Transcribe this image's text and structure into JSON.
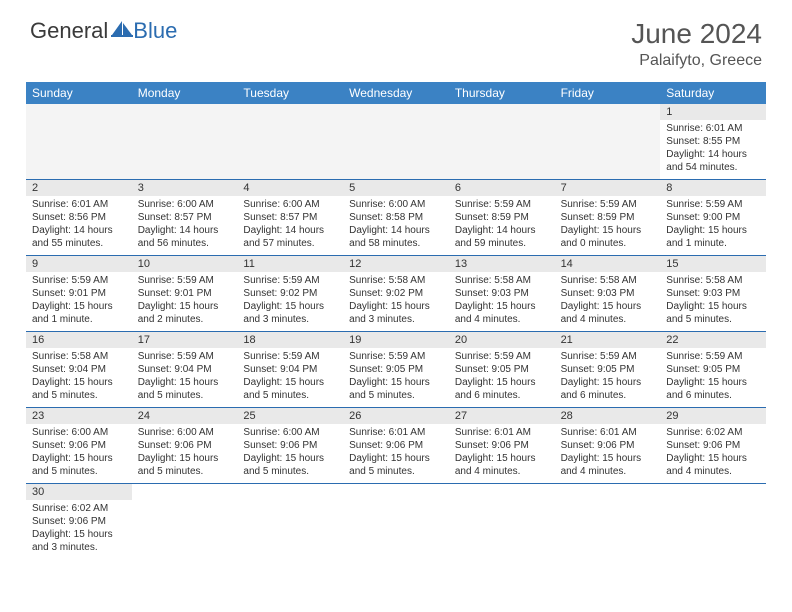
{
  "brand": {
    "part1": "General",
    "part2": "Blue"
  },
  "title": "June 2024",
  "location": "Palaifyto, Greece",
  "colors": {
    "header_bg": "#3b82c4",
    "header_fg": "#ffffff",
    "row_border": "#2b6cb0",
    "num_bg": "#e9e9e9",
    "empty_bg": "#f4f4f4",
    "text": "#333333",
    "title_color": "#555555"
  },
  "day_labels": [
    "Sunday",
    "Monday",
    "Tuesday",
    "Wednesday",
    "Thursday",
    "Friday",
    "Saturday"
  ],
  "weeks": [
    [
      null,
      null,
      null,
      null,
      null,
      null,
      {
        "n": "1",
        "sr": "6:01 AM",
        "ss": "8:55 PM",
        "dl": "14 hours and 54 minutes."
      }
    ],
    [
      {
        "n": "2",
        "sr": "6:01 AM",
        "ss": "8:56 PM",
        "dl": "14 hours and 55 minutes."
      },
      {
        "n": "3",
        "sr": "6:00 AM",
        "ss": "8:57 PM",
        "dl": "14 hours and 56 minutes."
      },
      {
        "n": "4",
        "sr": "6:00 AM",
        "ss": "8:57 PM",
        "dl": "14 hours and 57 minutes."
      },
      {
        "n": "5",
        "sr": "6:00 AM",
        "ss": "8:58 PM",
        "dl": "14 hours and 58 minutes."
      },
      {
        "n": "6",
        "sr": "5:59 AM",
        "ss": "8:59 PM",
        "dl": "14 hours and 59 minutes."
      },
      {
        "n": "7",
        "sr": "5:59 AM",
        "ss": "8:59 PM",
        "dl": "15 hours and 0 minutes."
      },
      {
        "n": "8",
        "sr": "5:59 AM",
        "ss": "9:00 PM",
        "dl": "15 hours and 1 minute."
      }
    ],
    [
      {
        "n": "9",
        "sr": "5:59 AM",
        "ss": "9:01 PM",
        "dl": "15 hours and 1 minute."
      },
      {
        "n": "10",
        "sr": "5:59 AM",
        "ss": "9:01 PM",
        "dl": "15 hours and 2 minutes."
      },
      {
        "n": "11",
        "sr": "5:59 AM",
        "ss": "9:02 PM",
        "dl": "15 hours and 3 minutes."
      },
      {
        "n": "12",
        "sr": "5:58 AM",
        "ss": "9:02 PM",
        "dl": "15 hours and 3 minutes."
      },
      {
        "n": "13",
        "sr": "5:58 AM",
        "ss": "9:03 PM",
        "dl": "15 hours and 4 minutes."
      },
      {
        "n": "14",
        "sr": "5:58 AM",
        "ss": "9:03 PM",
        "dl": "15 hours and 4 minutes."
      },
      {
        "n": "15",
        "sr": "5:58 AM",
        "ss": "9:03 PM",
        "dl": "15 hours and 5 minutes."
      }
    ],
    [
      {
        "n": "16",
        "sr": "5:58 AM",
        "ss": "9:04 PM",
        "dl": "15 hours and 5 minutes."
      },
      {
        "n": "17",
        "sr": "5:59 AM",
        "ss": "9:04 PM",
        "dl": "15 hours and 5 minutes."
      },
      {
        "n": "18",
        "sr": "5:59 AM",
        "ss": "9:04 PM",
        "dl": "15 hours and 5 minutes."
      },
      {
        "n": "19",
        "sr": "5:59 AM",
        "ss": "9:05 PM",
        "dl": "15 hours and 5 minutes."
      },
      {
        "n": "20",
        "sr": "5:59 AM",
        "ss": "9:05 PM",
        "dl": "15 hours and 6 minutes."
      },
      {
        "n": "21",
        "sr": "5:59 AM",
        "ss": "9:05 PM",
        "dl": "15 hours and 6 minutes."
      },
      {
        "n": "22",
        "sr": "5:59 AM",
        "ss": "9:05 PM",
        "dl": "15 hours and 6 minutes."
      }
    ],
    [
      {
        "n": "23",
        "sr": "6:00 AM",
        "ss": "9:06 PM",
        "dl": "15 hours and 5 minutes."
      },
      {
        "n": "24",
        "sr": "6:00 AM",
        "ss": "9:06 PM",
        "dl": "15 hours and 5 minutes."
      },
      {
        "n": "25",
        "sr": "6:00 AM",
        "ss": "9:06 PM",
        "dl": "15 hours and 5 minutes."
      },
      {
        "n": "26",
        "sr": "6:01 AM",
        "ss": "9:06 PM",
        "dl": "15 hours and 5 minutes."
      },
      {
        "n": "27",
        "sr": "6:01 AM",
        "ss": "9:06 PM",
        "dl": "15 hours and 4 minutes."
      },
      {
        "n": "28",
        "sr": "6:01 AM",
        "ss": "9:06 PM",
        "dl": "15 hours and 4 minutes."
      },
      {
        "n": "29",
        "sr": "6:02 AM",
        "ss": "9:06 PM",
        "dl": "15 hours and 4 minutes."
      }
    ],
    [
      {
        "n": "30",
        "sr": "6:02 AM",
        "ss": "9:06 PM",
        "dl": "15 hours and 3 minutes."
      },
      null,
      null,
      null,
      null,
      null,
      null
    ]
  ],
  "labels": {
    "sunrise": "Sunrise:",
    "sunset": "Sunset:",
    "daylight": "Daylight:"
  }
}
